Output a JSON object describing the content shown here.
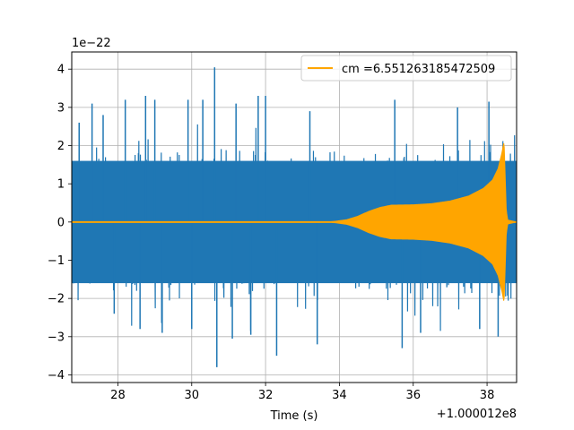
{
  "chart_data": {
    "type": "line",
    "xlabel": "Time (s)",
    "ylabel": "",
    "x_offset_label": "+1.000012e8",
    "y_scale_label": "1e−22",
    "xlim": [
      26.75,
      38.8
    ],
    "ylim": [
      -4.2,
      4.45
    ],
    "xticks": [
      28,
      30,
      32,
      34,
      36,
      38
    ],
    "xtick_labels": [
      "28",
      "30",
      "32",
      "34",
      "36",
      "38"
    ],
    "yticks": [
      -4,
      -3,
      -2,
      -1,
      0,
      1,
      2,
      3,
      4
    ],
    "ytick_labels": [
      "−4",
      "−3",
      "−2",
      "−1",
      "0",
      "1",
      "2",
      "3",
      "4"
    ],
    "grid": true,
    "legend_position": "top-right",
    "series": [
      {
        "color": "#1f77b4",
        "description": "strain noise, spans about -2 to 2 with outliers to about +/-4",
        "spikes": [
          {
            "x": 26.95,
            "y": 2.6
          },
          {
            "x": 27.3,
            "y": 3.1
          },
          {
            "x": 27.6,
            "y": 2.8
          },
          {
            "x": 28.2,
            "y": 3.2
          },
          {
            "x": 28.75,
            "y": 3.3
          },
          {
            "x": 29.0,
            "y": 3.2
          },
          {
            "x": 29.9,
            "y": 3.2
          },
          {
            "x": 30.3,
            "y": 3.2
          },
          {
            "x": 30.62,
            "y": 4.05
          },
          {
            "x": 31.2,
            "y": 3.1
          },
          {
            "x": 31.8,
            "y": 3.3
          },
          {
            "x": 32.0,
            "y": 3.3
          },
          {
            "x": 33.2,
            "y": 2.9
          },
          {
            "x": 35.5,
            "y": 3.2
          },
          {
            "x": 37.2,
            "y": 3.0
          },
          {
            "x": 38.05,
            "y": 3.15
          },
          {
            "x": 27.9,
            "y": -2.4
          },
          {
            "x": 28.6,
            "y": -2.8
          },
          {
            "x": 29.2,
            "y": -2.9
          },
          {
            "x": 30.0,
            "y": -2.8
          },
          {
            "x": 30.68,
            "y": -3.8
          },
          {
            "x": 31.1,
            "y": -3.05
          },
          {
            "x": 31.6,
            "y": -2.95
          },
          {
            "x": 32.3,
            "y": -3.5
          },
          {
            "x": 33.4,
            "y": -3.2
          },
          {
            "x": 35.7,
            "y": -3.3
          },
          {
            "x": 36.2,
            "y": -2.9
          },
          {
            "x": 37.8,
            "y": -2.8
          },
          {
            "x": 38.3,
            "y": -3.0
          }
        ]
      },
      {
        "name": "cm =6.551263185472509",
        "color": "#ffa500",
        "description": "chirp template, zero until about 33.8 then grows to about +/-0.45 near 35.4, then to +/-2.1 near 38.45 and cuts off",
        "envelope": [
          {
            "x": 26.75,
            "y": 0.0
          },
          {
            "x": 33.6,
            "y": 0.0
          },
          {
            "x": 33.9,
            "y": 0.02
          },
          {
            "x": 34.2,
            "y": 0.06
          },
          {
            "x": 34.5,
            "y": 0.15
          },
          {
            "x": 34.8,
            "y": 0.28
          },
          {
            "x": 35.1,
            "y": 0.38
          },
          {
            "x": 35.4,
            "y": 0.44
          },
          {
            "x": 36.0,
            "y": 0.45
          },
          {
            "x": 36.5,
            "y": 0.48
          },
          {
            "x": 37.0,
            "y": 0.55
          },
          {
            "x": 37.5,
            "y": 0.68
          },
          {
            "x": 37.9,
            "y": 0.88
          },
          {
            "x": 38.15,
            "y": 1.1
          },
          {
            "x": 38.3,
            "y": 1.4
          },
          {
            "x": 38.4,
            "y": 1.8
          },
          {
            "x": 38.46,
            "y": 2.1
          },
          {
            "x": 38.52,
            "y": 0.3
          },
          {
            "x": 38.56,
            "y": 0.05
          },
          {
            "x": 38.8,
            "y": 0.0
          }
        ]
      }
    ]
  }
}
